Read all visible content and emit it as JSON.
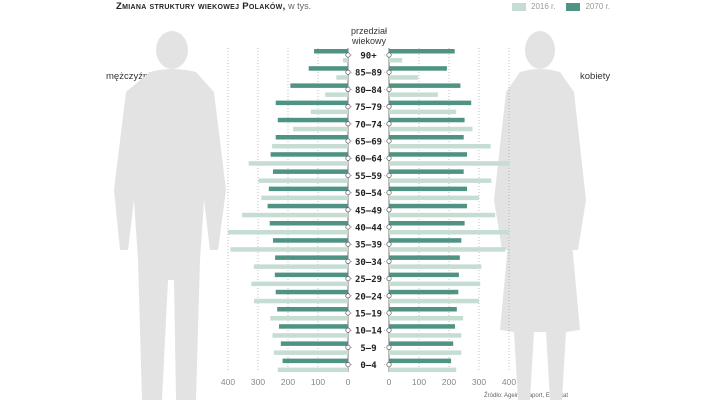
{
  "title": {
    "main": "Zmiana struktury wiekowej Polaków,",
    "unit": "w tys."
  },
  "legend": [
    {
      "label": "2016 r.",
      "color": "#c6ddd4"
    },
    {
      "label": "2070 r.",
      "color": "#4e9383"
    }
  ],
  "labels": {
    "men": "mężczyźni",
    "women": "kobiety",
    "axis_header_1": "przedział",
    "axis_header_2": "wiekowy"
  },
  "source": "Źródło: Ageing Raport, Eurostat",
  "chart_data": {
    "type": "bar",
    "subtype": "population-pyramid",
    "title": "Zmiana struktury wiekowej Polaków, w tys.",
    "categories": [
      "90+",
      "85–89",
      "80–84",
      "75–79",
      "70–74",
      "65–69",
      "60–64",
      "55–59",
      "50–54",
      "45–49",
      "40–44",
      "35–39",
      "30–34",
      "25–29",
      "20–24",
      "15–19",
      "10–14",
      "5–9",
      "0–4"
    ],
    "xlim": [
      0,
      400
    ],
    "xticks": [
      "400",
      "300",
      "200",
      "100",
      "0",
      "0",
      "100",
      "200",
      "300",
      "400"
    ],
    "series": [
      {
        "name": "mężczyźni 2016 r.",
        "side": "left",
        "year": "2016",
        "values": [
          17,
          39,
          76,
          124,
          183,
          253,
          331,
          298,
          289,
          353,
          400,
          392,
          314,
          322,
          313,
          259,
          252,
          247,
          234
        ]
      },
      {
        "name": "mężczyźni 2070 r.",
        "side": "left",
        "year": "2070",
        "values": [
          113,
          131,
          192,
          241,
          234,
          241,
          258,
          250,
          264,
          268,
          261,
          250,
          243,
          244,
          241,
          236,
          230,
          224,
          218
        ]
      },
      {
        "name": "kobiety 2016 r.",
        "side": "right",
        "year": "2016",
        "values": [
          44,
          97,
          163,
          224,
          278,
          339,
          400,
          341,
          300,
          354,
          400,
          387,
          308,
          304,
          300,
          247,
          241,
          241,
          224
        ]
      },
      {
        "name": "kobiety 2070 r.",
        "side": "right",
        "year": "2070",
        "values": [
          219,
          193,
          238,
          274,
          252,
          249,
          260,
          249,
          260,
          260,
          252,
          241,
          236,
          233,
          231,
          226,
          220,
          214,
          207
        ]
      }
    ]
  }
}
